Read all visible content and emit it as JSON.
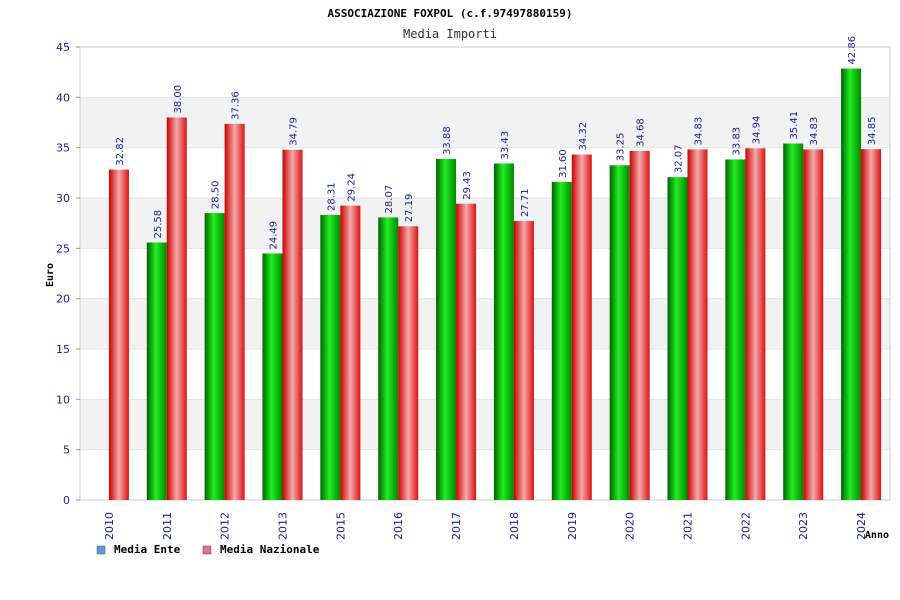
{
  "chart_data": {
    "type": "bar",
    "title": "ASSOCIAZIONE FOXPOL (c.f.97497880159)",
    "subtitle": "Media Importi",
    "ylabel": "Euro",
    "xlabel": "Anno",
    "ylim": [
      0,
      45
    ],
    "yticks": [
      0,
      5,
      10,
      15,
      20,
      25,
      30,
      35,
      40,
      45
    ],
    "categories": [
      "2010",
      "2011",
      "2012",
      "2013",
      "2015",
      "2016",
      "2017",
      "2018",
      "2019",
      "2020",
      "2021",
      "2022",
      "2023",
      "2024"
    ],
    "series": [
      {
        "name": "Media Ente",
        "values": [
          null,
          25.58,
          28.5,
          24.49,
          28.31,
          28.07,
          33.88,
          33.43,
          31.6,
          33.25,
          32.07,
          33.83,
          35.41,
          42.86
        ],
        "labels": [
          "",
          "25.58",
          "28.50",
          "24.49",
          "28.31",
          "28.07",
          "33.88",
          "33.43",
          "31.60",
          "33.25",
          "32.07",
          "33.83",
          "35.41",
          "42.86"
        ]
      },
      {
        "name": "Media Nazionale",
        "values": [
          32.82,
          38.0,
          37.36,
          34.79,
          29.24,
          27.19,
          29.43,
          27.71,
          34.32,
          34.68,
          34.83,
          34.94,
          34.83,
          34.85
        ],
        "labels": [
          "32.82",
          "38.00",
          "37.36",
          "34.79",
          "29.24",
          "27.19",
          "29.43",
          "27.71",
          "34.32",
          "34.68",
          "34.83",
          "34.94",
          "34.83",
          "34.85"
        ]
      }
    ],
    "legend": [
      {
        "name": "Media Ente",
        "color": "#5b9bd5"
      },
      {
        "name": "Media Nazionale",
        "color": "#e06fa0"
      }
    ],
    "colors": {
      "ente": "#00a000",
      "nazionale": "#e02020",
      "axis": "#1a1aa6",
      "band": "#f2f2f2"
    }
  }
}
